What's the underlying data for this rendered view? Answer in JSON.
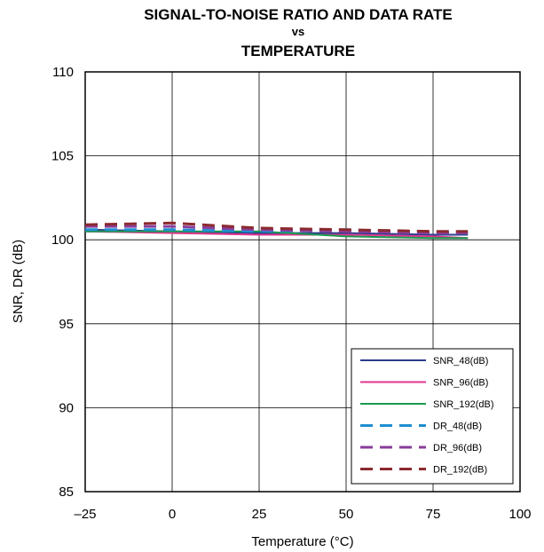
{
  "chart_data": {
    "type": "line",
    "title_lines": [
      "SIGNAL-TO-NOISE RATIO AND DATA RATE",
      "vs",
      "TEMPERATURE"
    ],
    "xlabel": "Temperature (°C)",
    "ylabel": "SNR, DR (dB)",
    "xlim": [
      -25,
      100
    ],
    "ylim": [
      85,
      110
    ],
    "x_ticks": [
      -25,
      0,
      25,
      50,
      75,
      100
    ],
    "x_tick_labels": [
      "–25",
      "0",
      "25",
      "50",
      "75",
      "100"
    ],
    "y_ticks": [
      85,
      90,
      95,
      100,
      105,
      110
    ],
    "y_tick_labels": [
      "85",
      "90",
      "95",
      "100",
      "105",
      "110"
    ],
    "grid": true,
    "legend_position": "bottom-right",
    "x": [
      -25,
      0,
      25,
      50,
      75,
      85
    ],
    "series": [
      {
        "name": "SNR_48(dB)",
        "color": "#2b3c8c",
        "dashed": false,
        "values": [
          100.6,
          100.5,
          100.4,
          100.4,
          100.3,
          100.3
        ]
      },
      {
        "name": "SNR_96(dB)",
        "color": "#e0358f",
        "dashed": false,
        "values": [
          100.5,
          100.4,
          100.3,
          100.3,
          100.2,
          100.1
        ]
      },
      {
        "name": "SNR_192(dB)",
        "color": "#1a9a50",
        "dashed": false,
        "values": [
          100.5,
          100.5,
          100.5,
          100.2,
          100.1,
          100.1
        ]
      },
      {
        "name": "DR_48(dB)",
        "color": "#1f8ed0",
        "dashed": true,
        "values": [
          100.6,
          100.6,
          100.5,
          100.6,
          100.4,
          100.4
        ]
      },
      {
        "name": "DR_96(dB)",
        "color": "#8a3d9a",
        "dashed": true,
        "values": [
          100.8,
          100.8,
          100.6,
          100.5,
          100.4,
          100.4
        ]
      },
      {
        "name": "DR_192(dB)",
        "color": "#8b2a2e",
        "dashed": true,
        "values": [
          100.9,
          101.0,
          100.7,
          100.6,
          100.5,
          100.5
        ]
      }
    ]
  }
}
